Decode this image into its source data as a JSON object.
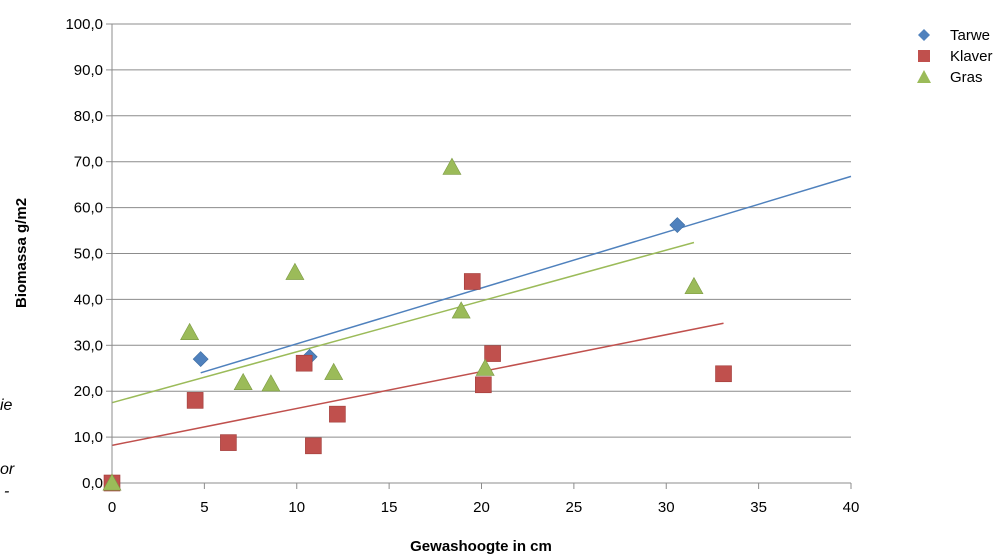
{
  "chart_data": {
    "type": "scatter",
    "title": "",
    "xlabel": "Gewashoogte in cm",
    "ylabel": "Biomassa g/m2",
    "xlim": [
      0,
      40
    ],
    "ylim": [
      0,
      100
    ],
    "x_ticks": [
      0,
      5,
      10,
      15,
      20,
      25,
      30,
      35,
      40
    ],
    "x_tick_labels": [
      "0",
      "5",
      "10",
      "15",
      "20",
      "25",
      "30",
      "35",
      "40"
    ],
    "y_ticks": [
      0,
      10,
      20,
      30,
      40,
      50,
      60,
      70,
      80,
      90,
      100
    ],
    "y_tick_labels": [
      "0,0",
      "10,0",
      "20,0",
      "30,0",
      "40,0",
      "50,0",
      "60,0",
      "70,0",
      "80,0",
      "90,0",
      "100,0"
    ],
    "grid": "horizontal",
    "legend_position": "top-right",
    "series": [
      {
        "name": "Tarwe",
        "marker": "diamond",
        "color": "#4F81BD",
        "points": [
          [
            4.8,
            27.0
          ],
          [
            10.7,
            27.5
          ],
          [
            30.6,
            56.2
          ]
        ],
        "trendline": {
          "x": [
            4.8,
            40
          ],
          "y": [
            24.0,
            66.8
          ]
        }
      },
      {
        "name": "Klaver",
        "marker": "square",
        "color": "#C0504D",
        "points": [
          [
            0,
            0
          ],
          [
            4.5,
            18.0
          ],
          [
            6.3,
            8.8
          ],
          [
            10.4,
            26.1
          ],
          [
            10.9,
            8.1
          ],
          [
            12.2,
            15.0
          ],
          [
            19.5,
            43.9
          ],
          [
            20.1,
            21.4
          ],
          [
            20.6,
            28.2
          ],
          [
            33.1,
            23.8
          ]
        ],
        "trendline": {
          "x": [
            0,
            33.1
          ],
          "y": [
            8.2,
            34.8
          ]
        }
      },
      {
        "name": "Gras",
        "marker": "triangle",
        "color": "#9BBB59",
        "points": [
          [
            0,
            0
          ],
          [
            4.2,
            32.8
          ],
          [
            7.1,
            21.9
          ],
          [
            8.6,
            21.6
          ],
          [
            9.9,
            45.9
          ],
          [
            12.0,
            24.1
          ],
          [
            18.4,
            68.8
          ],
          [
            18.9,
            37.5
          ],
          [
            20.2,
            25.0
          ],
          [
            31.5,
            42.8
          ]
        ],
        "trendline": {
          "x": [
            0,
            31.5
          ],
          "y": [
            17.5,
            52.4
          ]
        }
      }
    ]
  },
  "side_text": [
    "ie",
    "or",
    "-"
  ]
}
